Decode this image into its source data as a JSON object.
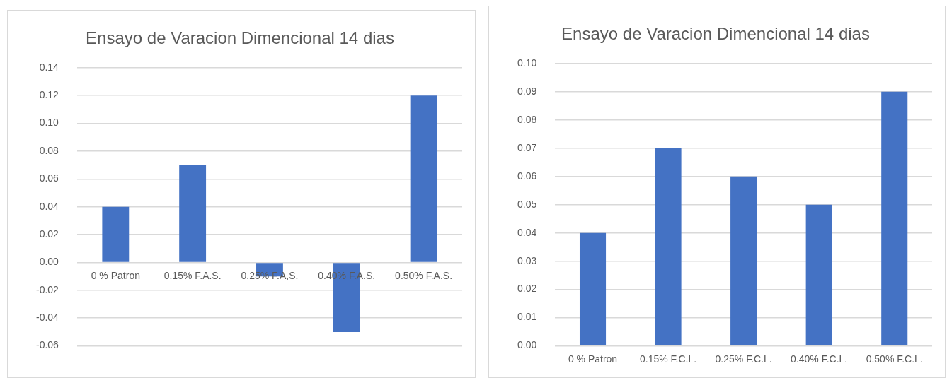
{
  "chart_data": [
    {
      "type": "bar",
      "title": "Ensayo de Varacion Dimencional 14 dias",
      "categories": [
        "0 % Patron",
        "0.15% F.A.S.",
        "0.25% F.A,S.",
        "0.40% F.A.S.",
        "0.50% F.A.S."
      ],
      "values": [
        0.04,
        0.07,
        -0.01,
        -0.05,
        0.12
      ],
      "color": "#4472c4",
      "ylim": [
        -0.06,
        0.14
      ],
      "yticks": [
        {
          "value": -0.06,
          "label": "-0.06"
        },
        {
          "value": -0.04,
          "label": "-0.04"
        },
        {
          "value": -0.02,
          "label": "-0.02"
        },
        {
          "value": 0,
          "label": "0.00"
        },
        {
          "value": 0.02,
          "label": "0.02"
        },
        {
          "value": 0.04,
          "label": "0.04"
        },
        {
          "value": 0.06,
          "label": "0.06"
        },
        {
          "value": 0.08,
          "label": "0.08"
        },
        {
          "value": 0.1,
          "label": "0.10"
        },
        {
          "value": 0.12,
          "label": "0.12"
        },
        {
          "value": 0.14,
          "label": "0.14"
        }
      ],
      "grid": "y",
      "legend": false
    },
    {
      "type": "bar",
      "title": "Ensayo de Varacion Dimencional 14 dias",
      "categories": [
        "0 % Patron",
        "0.15% F.C.L.",
        "0.25% F.C.L.",
        "0.40% F.C.L.",
        "0.50% F.C.L."
      ],
      "values": [
        0.04,
        0.07,
        0.06,
        0.05,
        0.09
      ],
      "color": "#4472c4",
      "ylim": [
        0,
        0.1
      ],
      "yticks": [
        {
          "value": 0,
          "label": "0.00"
        },
        {
          "value": 0.01,
          "label": "0.01"
        },
        {
          "value": 0.02,
          "label": "0.02"
        },
        {
          "value": 0.03,
          "label": "0.03"
        },
        {
          "value": 0.04,
          "label": "0.04"
        },
        {
          "value": 0.05,
          "label": "0.05"
        },
        {
          "value": 0.06,
          "label": "0.06"
        },
        {
          "value": 0.07,
          "label": "0.07"
        },
        {
          "value": 0.08,
          "label": "0.08"
        },
        {
          "value": 0.09,
          "label": "0.09"
        },
        {
          "value": 0.1,
          "label": "0.10"
        }
      ],
      "grid": "y",
      "legend": false
    }
  ]
}
